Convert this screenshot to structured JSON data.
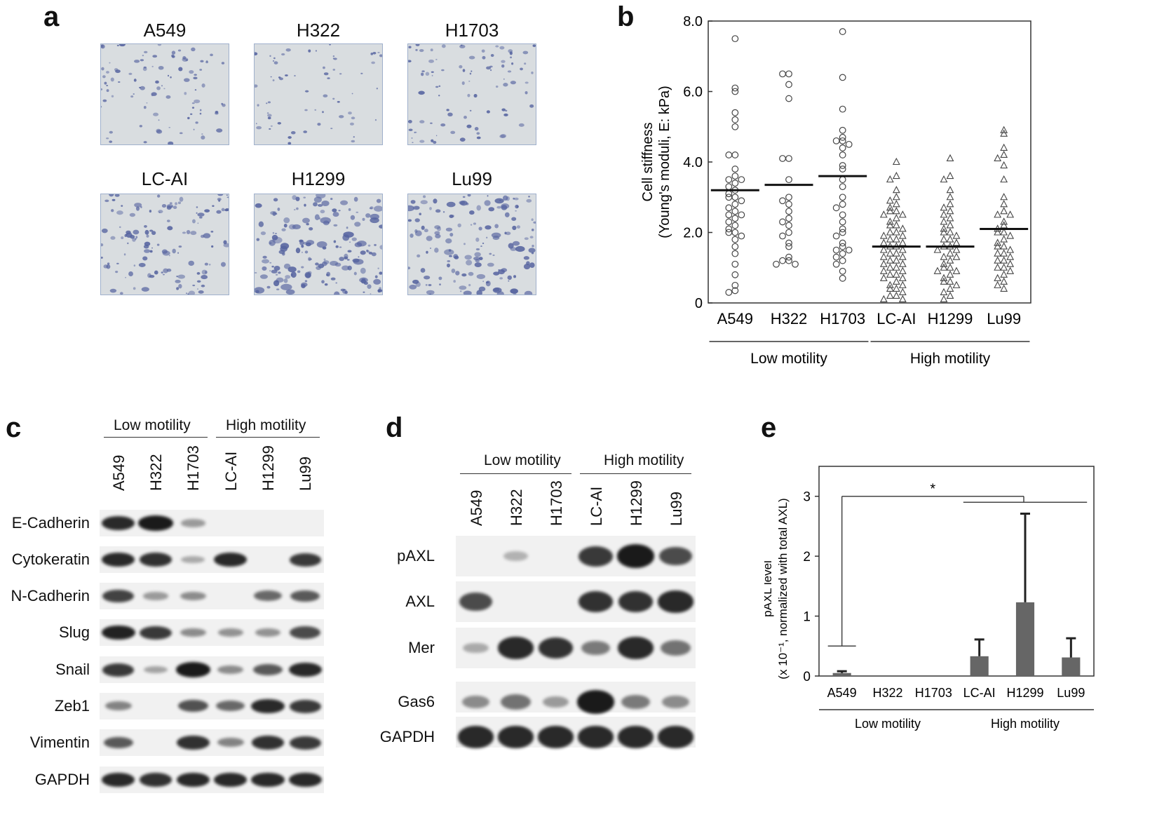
{
  "panels": {
    "a": {
      "letter": "a",
      "images": [
        {
          "label": "A549",
          "density": 0.35
        },
        {
          "label": "H322",
          "density": 0.15
        },
        {
          "label": "H1703",
          "density": 0.3
        },
        {
          "label": "LC-AI",
          "density": 0.55
        },
        {
          "label": "H1299",
          "density": 0.85
        },
        {
          "label": "Lu99",
          "density": 0.7
        }
      ]
    },
    "b": {
      "letter": "b"
    },
    "c": {
      "letter": "c",
      "groups": [
        "Low motility",
        "High motility"
      ],
      "lanes": [
        "A549",
        "H322",
        "H1703",
        "LC-AI",
        "H1299",
        "Lu99"
      ],
      "blots": [
        {
          "label": "E-Cadherin",
          "intensity": [
            0.9,
            1.0,
            0.2,
            0,
            0,
            0
          ]
        },
        {
          "label": "Cytokeratin",
          "intensity": [
            0.9,
            0.85,
            0.1,
            0.9,
            0,
            0.8
          ]
        },
        {
          "label": "N-Cadherin",
          "intensity": [
            0.75,
            0.2,
            0.3,
            0,
            0.5,
            0.6
          ]
        },
        {
          "label": "Slug",
          "intensity": [
            0.95,
            0.8,
            0.3,
            0.25,
            0.25,
            0.7
          ]
        },
        {
          "label": "Snail",
          "intensity": [
            0.8,
            0.15,
            1.0,
            0.3,
            0.6,
            0.9
          ]
        },
        {
          "label": "Zeb1",
          "intensity": [
            0.35,
            0,
            0.65,
            0.5,
            0.9,
            0.8
          ]
        },
        {
          "label": "Vimentin",
          "intensity": [
            0.6,
            0,
            0.85,
            0.35,
            0.85,
            0.8
          ]
        },
        {
          "label": "GAPDH",
          "intensity": [
            0.9,
            0.85,
            0.9,
            0.9,
            0.9,
            0.9
          ]
        }
      ]
    },
    "d": {
      "letter": "d",
      "groups": [
        "Low motility",
        "High motility"
      ],
      "lanes": [
        "A549",
        "H322",
        "H1703",
        "LC-AI",
        "H1299",
        "Lu99"
      ],
      "blots": [
        {
          "label": "pAXL",
          "intensity": [
            0,
            0.05,
            0,
            0.8,
            1.0,
            0.7
          ]
        },
        {
          "label": "AXL",
          "intensity": [
            0.7,
            0,
            0,
            0.85,
            0.85,
            0.9
          ]
        },
        {
          "label": "Mer",
          "intensity": [
            0.1,
            0.9,
            0.85,
            0.4,
            0.9,
            0.45
          ]
        },
        {
          "label": "Gas6",
          "intensity": [
            0.3,
            0.45,
            0.2,
            1.0,
            0.4,
            0.3
          ]
        },
        {
          "label": "GAPDH",
          "intensity": [
            0.9,
            0.9,
            0.9,
            0.9,
            0.9,
            0.9
          ]
        }
      ]
    },
    "e": {
      "letter": "e"
    }
  },
  "chart_data": [
    {
      "id": "b",
      "type": "scatter",
      "ylabel_line1": "Cell stiffness",
      "ylabel_line2": "(Young's moduli, E: kPa)",
      "ylim": [
        0,
        8.0
      ],
      "yticks": [
        "0",
        "2.0",
        "4.0",
        "6.0",
        "8.0"
      ],
      "yticks_values": [
        0,
        2,
        4,
        6,
        8
      ],
      "categories": [
        "A549",
        "H322",
        "H1703",
        "LC-AI",
        "H1299",
        "Lu99"
      ],
      "groups": [
        {
          "label": "Low motility",
          "from": 0,
          "to": 2
        },
        {
          "label": "High motility",
          "from": 3,
          "to": 5
        }
      ],
      "series": [
        {
          "category": "A549",
          "marker": "circle",
          "mean": 3.2,
          "values": [
            7.5,
            6.1,
            6.0,
            5.4,
            5.2,
            5.0,
            4.2,
            4.2,
            3.8,
            3.6,
            3.5,
            3.5,
            3.4,
            3.3,
            3.2,
            3.1,
            3.0,
            3.0,
            2.9,
            2.8,
            2.7,
            2.6,
            2.5,
            2.5,
            2.4,
            2.3,
            2.2,
            2.1,
            2.0,
            2.0,
            1.9,
            1.8,
            1.6,
            1.4,
            1.1,
            0.8,
            0.5,
            0.35,
            0.3
          ]
        },
        {
          "category": "H322",
          "marker": "circle",
          "mean": 3.35,
          "values": [
            6.5,
            6.5,
            6.2,
            5.8,
            4.1,
            4.1,
            3.5,
            3.0,
            2.9,
            2.8,
            2.6,
            2.4,
            2.3,
            2.2,
            2.0,
            1.9,
            1.7,
            1.6,
            1.3,
            1.2,
            1.2,
            1.1,
            1.1
          ]
        },
        {
          "category": "H1703",
          "marker": "circle",
          "mean": 3.6,
          "values": [
            7.7,
            6.4,
            5.5,
            4.9,
            4.7,
            4.6,
            4.6,
            4.5,
            4.4,
            4.2,
            3.9,
            3.8,
            3.5,
            3.3,
            3.0,
            2.8,
            2.7,
            2.5,
            2.3,
            2.1,
            2.0,
            1.9,
            1.7,
            1.6,
            1.5,
            1.5,
            1.4,
            1.3,
            1.2,
            1.1,
            0.9,
            0.7
          ]
        },
        {
          "category": "LC-AI",
          "marker": "triangle",
          "mean": 1.6,
          "values": [
            4.0,
            3.6,
            3.5,
            3.2,
            3.0,
            2.9,
            2.8,
            2.7,
            2.6,
            2.6,
            2.5,
            2.5,
            2.4,
            2.3,
            2.2,
            2.2,
            2.1,
            2.0,
            2.0,
            1.9,
            1.9,
            1.8,
            1.8,
            1.7,
            1.7,
            1.6,
            1.6,
            1.5,
            1.5,
            1.4,
            1.4,
            1.3,
            1.3,
            1.2,
            1.2,
            1.1,
            1.1,
            1.0,
            1.0,
            0.9,
            0.9,
            0.8,
            0.8,
            0.7,
            0.7,
            0.6,
            0.5,
            0.5,
            0.4,
            0.4,
            0.3,
            0.2,
            0.2,
            0.1,
            0.1
          ]
        },
        {
          "category": "H1299",
          "marker": "triangle",
          "mean": 1.6,
          "values": [
            4.1,
            3.6,
            3.5,
            3.2,
            3.0,
            2.8,
            2.7,
            2.6,
            2.5,
            2.4,
            2.3,
            2.2,
            2.1,
            2.0,
            2.0,
            1.9,
            1.8,
            1.8,
            1.7,
            1.6,
            1.6,
            1.5,
            1.5,
            1.4,
            1.3,
            1.3,
            1.2,
            1.1,
            1.0,
            1.0,
            0.9,
            0.9,
            0.8,
            0.7,
            0.6,
            0.6,
            0.5,
            0.4,
            0.3,
            0.2,
            0.1
          ]
        },
        {
          "category": "Lu99",
          "marker": "triangle",
          "mean": 2.1,
          "values": [
            4.9,
            4.8,
            4.4,
            4.2,
            4.1,
            3.9,
            3.5,
            3.0,
            2.8,
            2.6,
            2.5,
            2.5,
            2.3,
            2.2,
            2.1,
            2.0,
            2.0,
            1.9,
            1.8,
            1.7,
            1.6,
            1.6,
            1.5,
            1.4,
            1.4,
            1.3,
            1.2,
            1.2,
            1.1,
            1.0,
            1.0,
            0.9,
            0.8,
            0.7,
            0.6,
            0.5,
            0.4
          ]
        }
      ]
    },
    {
      "id": "e",
      "type": "bar",
      "ylabel_line1": "pAXL level",
      "ylabel_line2": "(x 10⁻¹, normalized with total AXL)",
      "ylim": [
        0,
        3.5
      ],
      "yticks": [
        "0",
        "1",
        "2",
        "3"
      ],
      "yticks_values": [
        0,
        1,
        2,
        3
      ],
      "categories": [
        "A549",
        "H322",
        "H1703",
        "LC-AI",
        "H1299",
        "Lu99"
      ],
      "values": [
        0.05,
        0,
        0,
        0.33,
        1.23,
        0.31
      ],
      "errors": [
        0.03,
        0,
        0,
        0.28,
        1.48,
        0.32
      ],
      "groups": [
        {
          "label": "Low motility",
          "from": 0,
          "to": 2
        },
        {
          "label": "High motility",
          "from": 3,
          "to": 5
        }
      ],
      "significance": "*"
    }
  ]
}
